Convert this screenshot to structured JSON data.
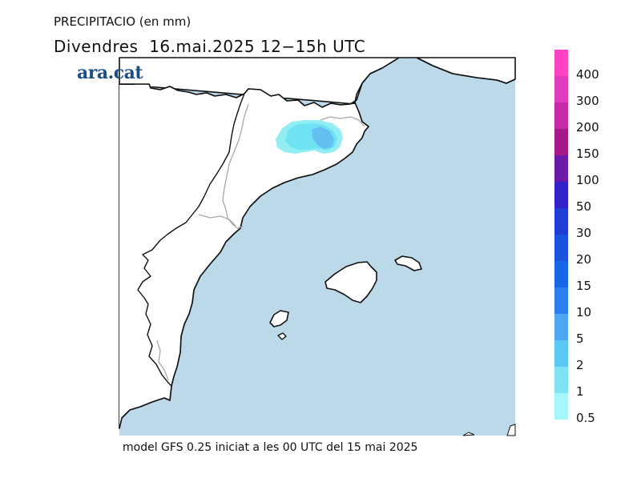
{
  "header": {
    "title": "PRECIPITACIO (en mm)",
    "subtitle": "Divendres  16.mai.2025 12−15h UTC"
  },
  "logo": {
    "text": "ara.cat",
    "color": "#1b4f86"
  },
  "footer": {
    "text": "model GFS 0.25 iniciat a les 00 UTC del 15 mai 2025"
  },
  "map": {
    "sea_color": "#bcd9ea",
    "land_color": "#ffffff",
    "coast_color": "#111111",
    "border_color": "#a8a8a8",
    "precip_cells": [
      {
        "level": "0.5-1",
        "color": "#92eef2"
      },
      {
        "level": "1-2",
        "color": "#6fe2f3"
      },
      {
        "level": "2-5",
        "color": "#65bff1"
      }
    ]
  },
  "legend": {
    "bins": [
      {
        "label": "400",
        "color": "#ff44c2"
      },
      {
        "label": "300",
        "color": "#e23cc0"
      },
      {
        "label": "200",
        "color": "#c62aa6"
      },
      {
        "label": "150",
        "color": "#a51a86"
      },
      {
        "label": "100",
        "color": "#6a1aa7"
      },
      {
        "label": "50",
        "color": "#3322c8"
      },
      {
        "label": "30",
        "color": "#1f3dd6"
      },
      {
        "label": "20",
        "color": "#1b52dd"
      },
      {
        "label": "15",
        "color": "#1666e6"
      },
      {
        "label": "10",
        "color": "#2a7ef0"
      },
      {
        "label": "5",
        "color": "#4fa6f2"
      },
      {
        "label": "2",
        "color": "#5ac9f3"
      },
      {
        "label": "1",
        "color": "#7fe3f3"
      },
      {
        "label": "0.5",
        "color": "#a5f7fb"
      }
    ]
  }
}
